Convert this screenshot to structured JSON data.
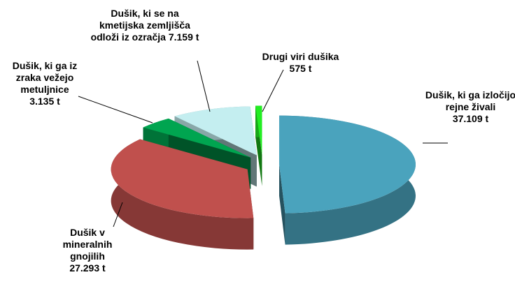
{
  "chart_data": {
    "type": "pie",
    "categories": [
      "Dušik, ki ga izločijo rejne živali",
      "Dušik v mineralnih gnojilih",
      "Dušik, ki ga iz zraka vežejo metuljnice",
      "Dušik, ki se na kmetijska zemljišča odloži iz ozračja",
      "Drugi viri dušika"
    ],
    "values": [
      37109,
      27293,
      3135,
      7159,
      575
    ],
    "value_labels": [
      "37.109 t",
      "27.293 t",
      "3.135 t",
      "7.159 t",
      "575 t"
    ],
    "colors": [
      "#4aa3bd",
      "#c0504d",
      "#00a550",
      "#c4eef0",
      "#22ee22"
    ]
  }
}
